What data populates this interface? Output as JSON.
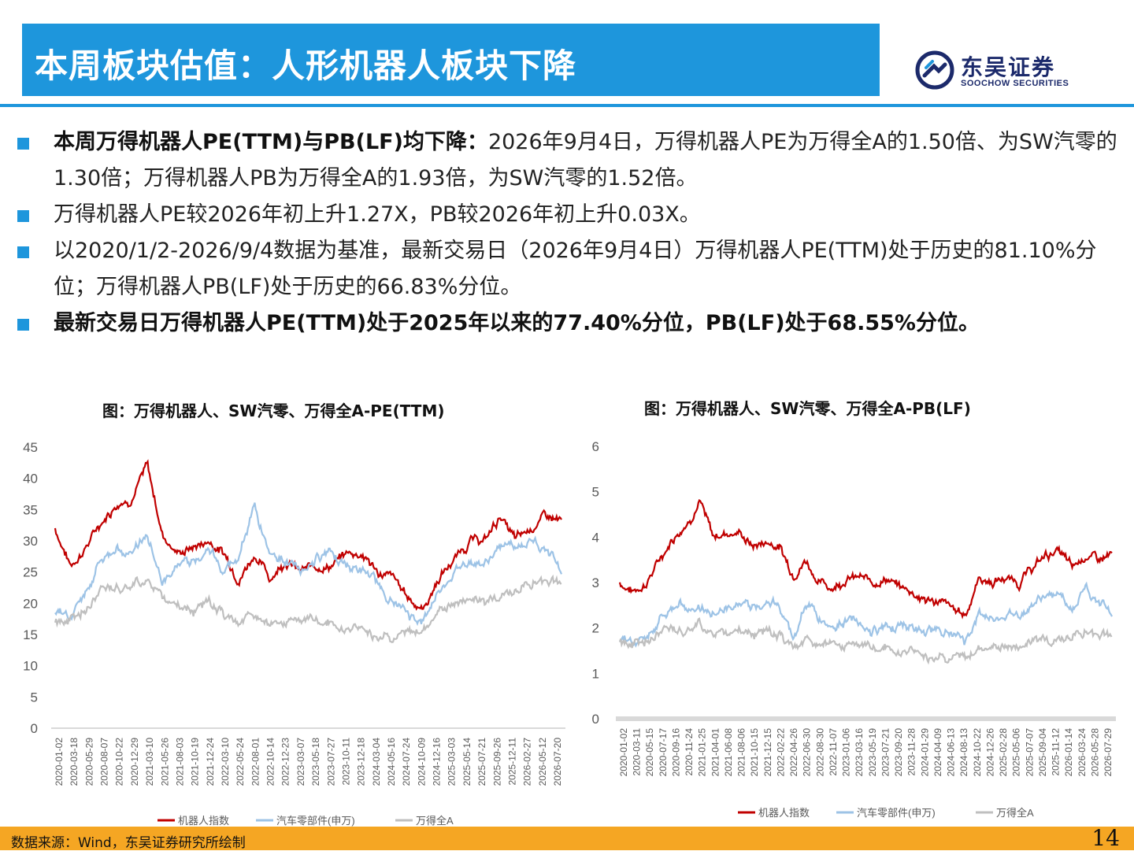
{
  "header": {
    "title": "本周板块估值：人形机器人板块下降",
    "logo_cn": "东吴证券",
    "logo_en": "SOOCHOW SECURITIES",
    "accent": "#1e96dc"
  },
  "bullets": [
    {
      "bold": "本周万得机器人PE(TTM)与PB(LF)均下降：",
      "text": "2026年9月4日，万得机器人PE为万得全A的1.50倍、为SW汽零的1.30倍；万得机器人PB为万得全A的1.93倍，为SW汽零的1.52倍。"
    },
    {
      "bold": "",
      "text": "万得机器人PE较2026年初上升1.27X，PB较2026年初上升0.03X。"
    },
    {
      "bold": "",
      "text": "以2020/1/2-2026/9/4数据为基准，最新交易日（2026年9月4日）万得机器人PE(TTM)处于历史的81.10%分位；万得机器人PB(LF)处于历史的66.83%分位。"
    },
    {
      "bold": "最新交易日万得机器人PE(TTM)处于2025年以来的77.40%分位，PB(LF)处于68.55%分位。",
      "text": ""
    }
  ],
  "chart_data": [
    {
      "type": "line",
      "title": "图：万得机器人、SW汽零、万得全A-PE(TTM)",
      "ylim": [
        0,
        45
      ],
      "yticks": [
        "0",
        "5",
        "10",
        "15",
        "20",
        "25",
        "30",
        "35",
        "40",
        "45"
      ],
      "x": [
        "2020-01-02",
        "2020-03-18",
        "2020-05-29",
        "2020-08-07",
        "2020-10-22",
        "2020-12-29",
        "2021-03-10",
        "2021-05-26",
        "2021-08-03",
        "2021-10-19",
        "2021-12-24",
        "2022-03-10",
        "2022-05-24",
        "2022-08-01",
        "2022-10-14",
        "2022-12-23",
        "2023-03-07",
        "2023-05-18",
        "2023-07-27",
        "2023-10-11",
        "2023-12-18",
        "2024-03-04",
        "2024-05-16",
        "2024-07-24",
        "2024-10-09",
        "2024-12-16",
        "2025-03-03",
        "2025-05-14",
        "2025-07-21",
        "2025-09-26",
        "2025-12-11",
        "2026-02-27",
        "2026-05-12",
        "2026-07-20"
      ],
      "grid": false,
      "legend_position": "bottom",
      "series": [
        {
          "name": "机器人指数",
          "color": "#c00000",
          "values": [
            32,
            26,
            29,
            33,
            36,
            37,
            42,
            31,
            28,
            29,
            30,
            28,
            24,
            28,
            24,
            27,
            25,
            26,
            26,
            28,
            28,
            25,
            24,
            21,
            19,
            24,
            27,
            30,
            30,
            34,
            30,
            32,
            34,
            33
          ]
        },
        {
          "name": "汽车零部件(申万)",
          "color": "#9dc3e6",
          "values": [
            19,
            18,
            22,
            27,
            28,
            29,
            31,
            23,
            26,
            27,
            29,
            25,
            28,
            35,
            28,
            27,
            25,
            27,
            29,
            26,
            25,
            23,
            20,
            18,
            17,
            22,
            25,
            27,
            26,
            29,
            29,
            30,
            29,
            25
          ]
        },
        {
          "name": "万得全A",
          "color": "#bfbfbf",
          "values": [
            17,
            17,
            19,
            22,
            23,
            23,
            24,
            21,
            20,
            19,
            20,
            18,
            17,
            18,
            16,
            17,
            17,
            17,
            17,
            16,
            16,
            15,
            15,
            15,
            16,
            19,
            20,
            21,
            20,
            22,
            22,
            23,
            24,
            23
          ]
        }
      ]
    },
    {
      "type": "line",
      "title": "图：万得机器人、SW汽零、万得全A-PB(LF)",
      "ylim": [
        0,
        6
      ],
      "yticks": [
        "0",
        "1",
        "2",
        "3",
        "4",
        "5",
        "6"
      ],
      "x": [
        "2020-01-02",
        "2020-03-11",
        "2020-05-15",
        "2020-07-17",
        "2020-09-16",
        "2020-11-24",
        "2021-01-25",
        "2021-04-01",
        "2021-06-08",
        "2021-08-06",
        "2021-10-15",
        "2021-12-15",
        "2022-02-22",
        "2022-04-26",
        "2022-06-30",
        "2022-08-30",
        "2022-11-07",
        "2023-01-06",
        "2023-03-16",
        "2023-05-19",
        "2023-07-21",
        "2023-09-20",
        "2023-11-28",
        "2024-01-29",
        "2024-04-09",
        "2024-06-13",
        "2024-08-13",
        "2024-10-22",
        "2024-12-26",
        "2025-02-28",
        "2025-05-06",
        "2025-07-07",
        "2025-09-04",
        "2025-11-12",
        "2026-01-14",
        "2026-03-24",
        "2026-05-28",
        "2026-07-29"
      ],
      "grid": false,
      "legend_position": "bottom",
      "series": [
        {
          "name": "机器人指数",
          "color": "#c00000",
          "values": [
            3.0,
            2.8,
            3.0,
            3.5,
            4.0,
            4.3,
            4.8,
            4.0,
            4.1,
            4.1,
            3.8,
            3.9,
            3.8,
            3.2,
            3.5,
            3.0,
            2.9,
            3.1,
            3.1,
            3.0,
            3.1,
            2.9,
            2.8,
            2.6,
            2.6,
            2.4,
            2.3,
            3.1,
            3.0,
            3.1,
            3.0,
            3.3,
            3.6,
            3.7,
            3.3,
            3.6,
            3.5,
            3.6
          ]
        },
        {
          "name": "汽车零部件(申万)",
          "color": "#9dc3e6",
          "values": [
            1.8,
            1.7,
            1.8,
            2.2,
            2.4,
            2.5,
            2.5,
            2.3,
            2.4,
            2.5,
            2.5,
            2.6,
            2.5,
            1.8,
            2.5,
            2.2,
            2.0,
            2.2,
            2.1,
            1.9,
            2.1,
            2.1,
            2.0,
            1.8,
            2.0,
            1.8,
            1.7,
            2.3,
            2.2,
            2.3,
            2.3,
            2.5,
            2.7,
            2.7,
            2.4,
            2.9,
            2.6,
            2.3
          ]
        },
        {
          "name": "万得全A",
          "color": "#bfbfbf",
          "values": [
            1.7,
            1.6,
            1.7,
            1.9,
            2.0,
            2.0,
            2.1,
            1.9,
            1.9,
            2.0,
            1.9,
            1.9,
            1.8,
            1.6,
            1.7,
            1.6,
            1.6,
            1.6,
            1.6,
            1.5,
            1.6,
            1.5,
            1.5,
            1.4,
            1.4,
            1.4,
            1.3,
            1.6,
            1.6,
            1.6,
            1.6,
            1.7,
            1.8,
            1.8,
            1.8,
            1.9,
            1.9,
            1.8
          ]
        }
      ]
    }
  ],
  "footer": {
    "source": "数据来源：Wind，东吴证券研究所绘制",
    "page": "14",
    "color": "#f5a623"
  }
}
